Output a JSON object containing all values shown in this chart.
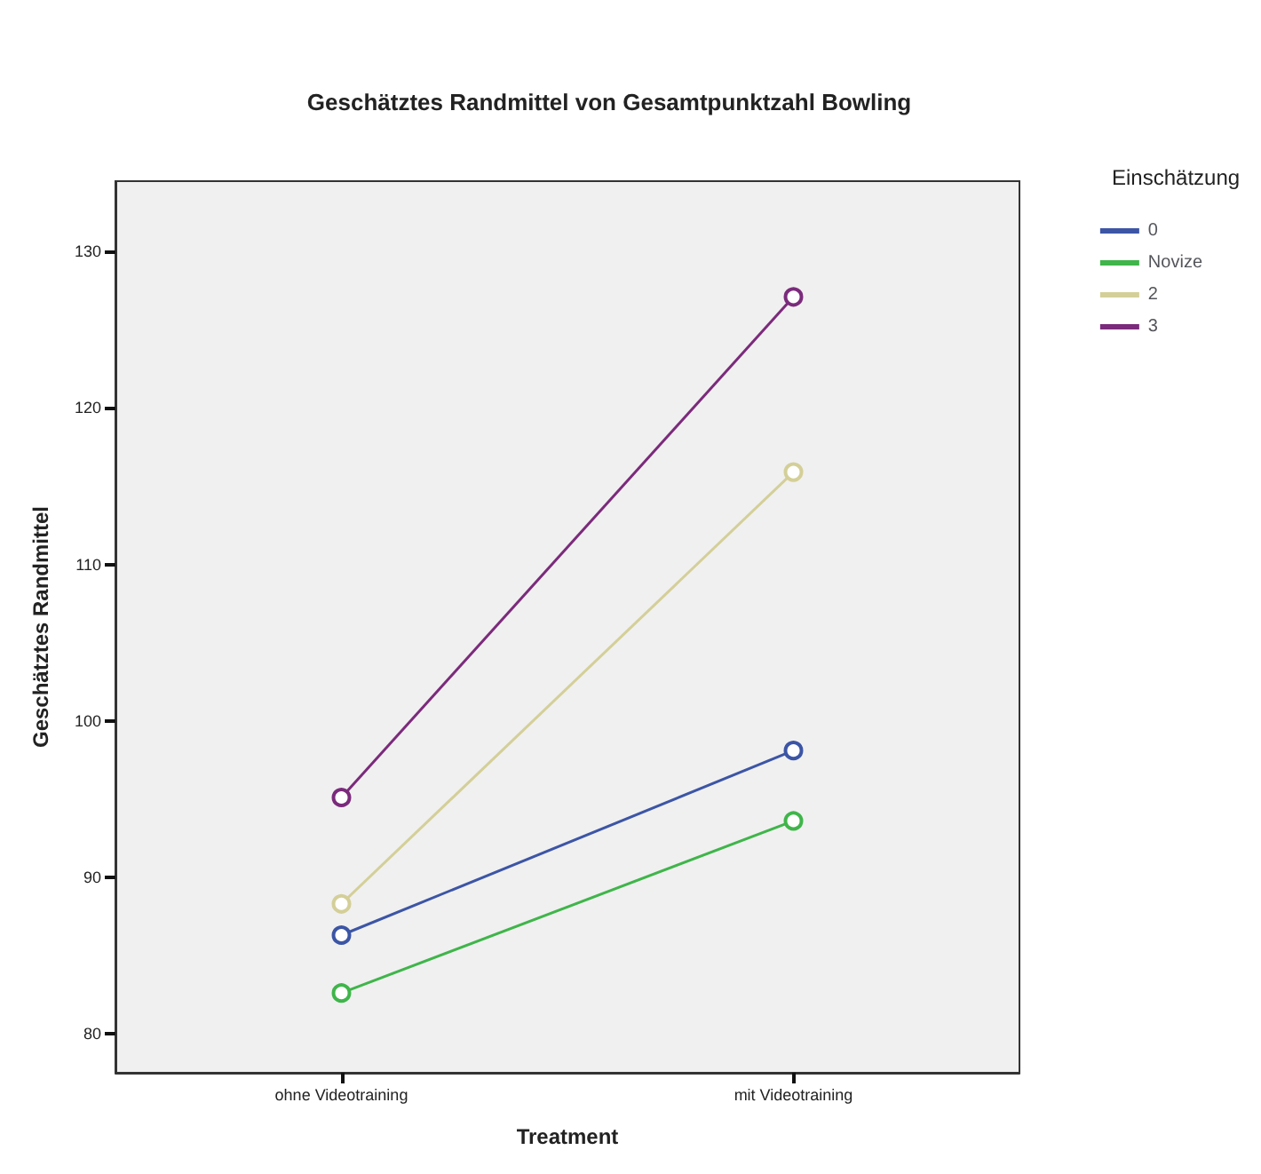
{
  "chart_data": {
    "type": "line",
    "title": "Geschätztes Randmittel von Gesamtpunktzahl Bowling",
    "xlabel": "Treatment",
    "ylabel": "Geschätztes Randmittel",
    "legend_title": "Einschätzung",
    "categories": [
      "ohne Videotraining",
      "mit Videotraining"
    ],
    "series": [
      {
        "name": "0",
        "color": "#3c55a5",
        "values": [
          86.3,
          98.1
        ]
      },
      {
        "name": "Novize",
        "color": "#3fb54a",
        "values": [
          82.6,
          93.6
        ]
      },
      {
        "name": "2",
        "color": "#d4cf98",
        "values": [
          88.3,
          115.9
        ]
      },
      {
        "name": "3",
        "color": "#7b2b7b",
        "values": [
          95.1,
          127.1
        ]
      }
    ],
    "ylim": [
      77.5,
      134.5
    ],
    "yticks": [
      80,
      90,
      100,
      110,
      120,
      130
    ],
    "grid": false,
    "legend": "right",
    "marker": "circle",
    "line_style": "solid"
  }
}
